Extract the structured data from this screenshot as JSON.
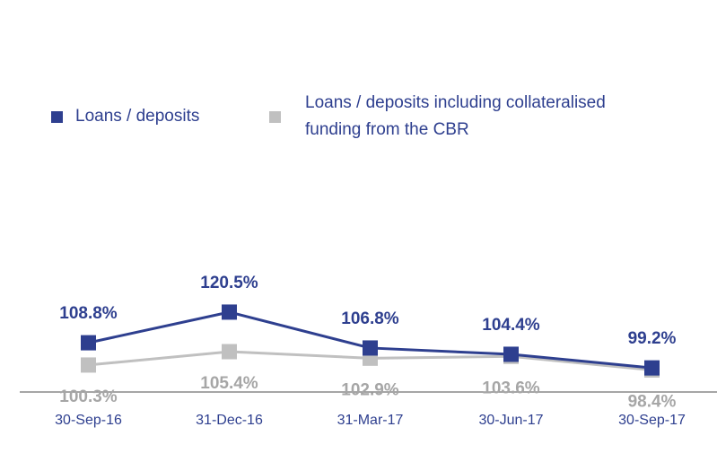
{
  "chart_data": {
    "type": "line",
    "categories": [
      "30-Sep-16",
      "31-Dec-16",
      "31-Mar-17",
      "30-Jun-17",
      "30-Sep-17"
    ],
    "series": [
      {
        "name": "Loans / deposits",
        "color": "#2e3f8f",
        "label_color": "#2e3f8f",
        "label_side": "above",
        "values": [
          108.8,
          120.5,
          106.8,
          104.4,
          99.2
        ],
        "value_labels": [
          "108.8%",
          "120.5%",
          "106.8%",
          "104.4%",
          "99.2%"
        ]
      },
      {
        "name": "Loans / deposits including collateralised funding from the CBR",
        "color": "#c0c0c0",
        "label_color": "#a6a6a6",
        "label_side": "below",
        "values": [
          100.3,
          105.4,
          102.9,
          103.6,
          98.4
        ],
        "value_labels": [
          "100.3%",
          "105.4%",
          "102.9%",
          "103.6%",
          "98.4%"
        ]
      }
    ],
    "ylim": [
      90,
      140
    ]
  }
}
